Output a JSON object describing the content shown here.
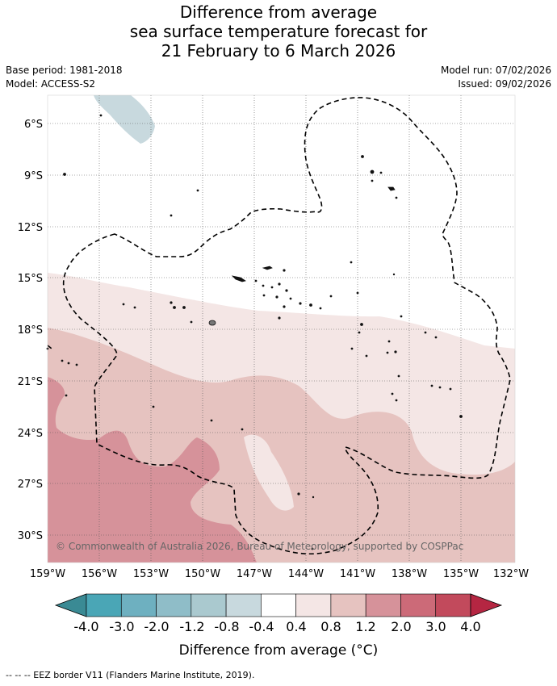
{
  "title": {
    "line1": "Difference from average",
    "line2": "sea surface temperature forecast for",
    "line3": "21 February to 6 March 2026"
  },
  "info": {
    "base_period": "Base period: 1981-2018",
    "model": "Model: ACCESS-S2",
    "model_run": "Model run: 07/02/2026",
    "issued": "Issued: 09/02/2026"
  },
  "map": {
    "lat_labels": [
      "6°S",
      "9°S",
      "12°S",
      "15°S",
      "18°S",
      "21°S",
      "24°S",
      "27°S",
      "30°S"
    ],
    "lon_labels": [
      "159°W",
      "156°W",
      "153°W",
      "150°W",
      "147°W",
      "144°W",
      "141°W",
      "138°W",
      "135°W",
      "132°W"
    ],
    "copyright": "© Commonwealth of Australia 2026, Bureau of Meteorology, supported by COSPPac"
  },
  "legend": {
    "ticks": [
      "-4.0",
      "-3.0",
      "-2.0",
      "-1.2",
      "-0.8",
      "-0.4",
      "0.4",
      "0.8",
      "1.2",
      "2.0",
      "3.0",
      "4.0"
    ],
    "colors": [
      "#3a8a94",
      "#4aa6b6",
      "#6eb0c0",
      "#8fbdc8",
      "#aac9cf",
      "#c8d9de",
      "#ffffff",
      "#f4e6e5",
      "#e6c3c0",
      "#d6929a",
      "#cc6a78",
      "#c24a5c",
      "#b52642"
    ],
    "label": "Difference from average (°C)"
  },
  "footnote": "--  --  -- EEZ border V11 (Flanders Marine Institute, 2019)."
}
